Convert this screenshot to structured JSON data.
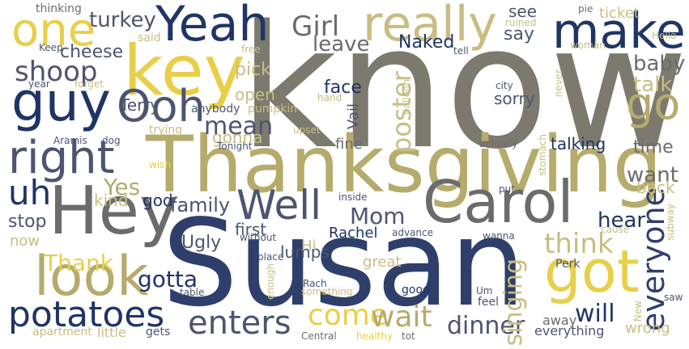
{
  "palette": {
    "background": "#ffffff",
    "navy": "#2f3f6b",
    "dark_navy": "#1f3566",
    "gray_olive": "#7c7a6f",
    "gray": "#6b6b6b",
    "tan": "#b5ab6c",
    "light_tan": "#c8bd82",
    "yellow": "#e8cf4a",
    "slate": "#4c5570"
  },
  "words": [
    {
      "text": "know",
      "color": "gray_olive",
      "vertical": false
    },
    {
      "text": "Susan",
      "color": "navy",
      "vertical": false
    },
    {
      "text": "Thanksgiving",
      "color": "tan",
      "vertical": false
    },
    {
      "text": "key",
      "color": "yellow",
      "vertical": false
    },
    {
      "text": "Hey",
      "color": "gray",
      "vertical": false
    },
    {
      "text": "Carol",
      "color": "gray",
      "vertical": false
    },
    {
      "text": "got",
      "color": "yellow",
      "vertical": false
    },
    {
      "text": "look",
      "color": "tan",
      "vertical": false
    },
    {
      "text": "guy",
      "color": "dark_navy",
      "vertical": false
    },
    {
      "text": "Yeah",
      "color": "dark_navy",
      "vertical": false
    },
    {
      "text": "really",
      "color": "light_tan",
      "vertical": false
    },
    {
      "text": "make",
      "color": "dark_navy",
      "vertical": false
    },
    {
      "text": "one",
      "color": "yellow",
      "vertical": false
    },
    {
      "text": "right",
      "color": "slate",
      "vertical": false
    },
    {
      "text": "Ooh",
      "color": "slate",
      "vertical": false
    },
    {
      "text": "go",
      "color": "tan",
      "vertical": false
    },
    {
      "text": "Well",
      "color": "slate",
      "vertical": false
    },
    {
      "text": "potatoes",
      "color": "dark_navy",
      "vertical": false
    },
    {
      "text": "everyone",
      "color": "navy",
      "vertical": true
    },
    {
      "text": "uh",
      "color": "dark_navy",
      "vertical": false
    },
    {
      "text": "enters",
      "color": "slate",
      "vertical": false
    },
    {
      "text": "come",
      "color": "yellow",
      "vertical": false
    },
    {
      "text": "wait",
      "color": "tan",
      "vertical": false
    },
    {
      "text": "Girl",
      "color": "gray",
      "vertical": false
    },
    {
      "text": "shoop",
      "color": "slate",
      "vertical": false
    },
    {
      "text": "think",
      "color": "light_tan",
      "vertical": false
    },
    {
      "text": "dinner",
      "color": "slate",
      "vertical": false
    },
    {
      "text": "mean",
      "color": "slate",
      "vertical": false
    },
    {
      "text": "Mom",
      "color": "slate",
      "vertical": false
    },
    {
      "text": "poster",
      "color": "light_tan",
      "vertical": true
    },
    {
      "text": "singing",
      "color": "light_tan",
      "vertical": true
    },
    {
      "text": "will",
      "color": "dark_navy",
      "vertical": false
    },
    {
      "text": "Thank",
      "color": "yellow",
      "vertical": false
    },
    {
      "text": "gotta",
      "color": "dark_navy",
      "vertical": false
    },
    {
      "text": "turkey",
      "color": "slate",
      "vertical": false
    },
    {
      "text": "leave",
      "color": "gray",
      "vertical": false
    },
    {
      "text": "Yes",
      "color": "tan",
      "vertical": false
    },
    {
      "text": "want",
      "color": "gray",
      "vertical": false
    },
    {
      "text": "baby",
      "color": "gray",
      "vertical": false
    },
    {
      "text": "talk",
      "color": "light_tan",
      "vertical": false
    },
    {
      "text": "hear",
      "color": "dark_navy",
      "vertical": false
    },
    {
      "text": "family",
      "color": "slate",
      "vertical": false
    },
    {
      "text": "face",
      "color": "dark_navy",
      "vertical": false
    },
    {
      "text": "Naked",
      "color": "dark_navy",
      "vertical": false
    },
    {
      "text": "cheese",
      "color": "slate",
      "vertical": false
    },
    {
      "text": "say",
      "color": "slate",
      "vertical": false
    },
    {
      "text": "pick",
      "color": "light_tan",
      "vertical": false
    },
    {
      "text": "open",
      "color": "light_tan",
      "vertical": false
    },
    {
      "text": "gonna",
      "color": "light_tan",
      "vertical": false
    },
    {
      "text": "time",
      "color": "gray",
      "vertical": false
    },
    {
      "text": "back",
      "color": "light_tan",
      "vertical": false
    },
    {
      "text": "see",
      "color": "slate",
      "vertical": false
    },
    {
      "text": "stop",
      "color": "slate",
      "vertical": false
    },
    {
      "text": "kind",
      "color": "light_tan",
      "vertical": false
    },
    {
      "text": "god",
      "color": "dark_navy",
      "vertical": false
    },
    {
      "text": "lumps",
      "color": "slate",
      "vertical": false
    },
    {
      "text": "Ugly",
      "color": "slate",
      "vertical": false
    },
    {
      "text": "first",
      "color": "slate",
      "vertical": false
    },
    {
      "text": "Rachel",
      "color": "dark_navy",
      "vertical": false
    },
    {
      "text": "sorry",
      "color": "slate",
      "vertical": false
    },
    {
      "text": "talking",
      "color": "dark_navy",
      "vertical": false
    },
    {
      "text": "ticket",
      "color": "light_tan",
      "vertical": false
    },
    {
      "text": "Terry",
      "color": "slate",
      "vertical": false
    },
    {
      "text": "Vail",
      "color": "slate",
      "vertical": true
    },
    {
      "text": "fine",
      "color": "gray",
      "vertical": false
    },
    {
      "text": "now",
      "color": "light_tan",
      "vertical": false
    },
    {
      "text": "Hi",
      "color": "light_tan",
      "vertical": false
    },
    {
      "text": "great",
      "color": "light_tan",
      "vertical": false
    },
    {
      "text": "everything",
      "color": "slate",
      "vertical": false
    },
    {
      "text": "away",
      "color": "gray",
      "vertical": false
    },
    {
      "text": "wrong",
      "color": "light_tan",
      "vertical": false
    },
    {
      "text": "thinking",
      "color": "gray",
      "vertical": false
    },
    {
      "text": "said",
      "color": "light_tan",
      "vertical": false
    },
    {
      "text": "Keep",
      "color": "slate",
      "vertical": false
    },
    {
      "text": "free",
      "color": "light_tan",
      "vertical": false
    },
    {
      "text": "ruined",
      "color": "light_tan",
      "vertical": false
    },
    {
      "text": "pie",
      "color": "gray",
      "vertical": false
    },
    {
      "text": "Hello",
      "color": "light_tan",
      "vertical": false
    },
    {
      "text": "woman",
      "color": "light_tan",
      "vertical": false
    },
    {
      "text": "tell",
      "color": "slate",
      "vertical": false
    },
    {
      "text": "year",
      "color": "slate",
      "vertical": false
    },
    {
      "text": "forget",
      "color": "light_tan",
      "vertical": false
    },
    {
      "text": "hand",
      "color": "light_tan",
      "vertical": false
    },
    {
      "text": "anybody",
      "color": "slate",
      "vertical": false
    },
    {
      "text": "pumpkin",
      "color": "light_tan",
      "vertical": false
    },
    {
      "text": "balloon",
      "color": "light_tan",
      "vertical": true
    },
    {
      "text": "city",
      "color": "slate",
      "vertical": false
    },
    {
      "text": "never",
      "color": "light_tan",
      "vertical": true
    },
    {
      "text": "trying",
      "color": "light_tan",
      "vertical": false
    },
    {
      "text": "upset",
      "color": "light_tan",
      "vertical": false
    },
    {
      "text": "Tonight",
      "color": "slate",
      "vertical": false
    },
    {
      "text": "Aramis",
      "color": "slate",
      "vertical": false
    },
    {
      "text": "dog",
      "color": "slate",
      "vertical": false
    },
    {
      "text": "wish",
      "color": "yellow",
      "vertical": false
    },
    {
      "text": "actually",
      "color": "gray",
      "vertical": false
    },
    {
      "text": "stomach",
      "color": "light_tan",
      "vertical": true
    },
    {
      "text": "inside",
      "color": "slate",
      "vertical": false
    },
    {
      "text": "put",
      "color": "slate",
      "vertical": false
    },
    {
      "text": "without",
      "color": "slate",
      "vertical": false
    },
    {
      "text": "advance",
      "color": "slate",
      "vertical": false
    },
    {
      "text": "wanna",
      "color": "slate",
      "vertical": false
    },
    {
      "text": "cause",
      "color": "light_tan",
      "vertical": false
    },
    {
      "text": "subway",
      "color": "light_tan",
      "vertical": true
    },
    {
      "text": "place",
      "color": "slate",
      "vertical": false
    },
    {
      "text": "enough",
      "color": "light_tan",
      "vertical": true
    },
    {
      "text": "Perk",
      "color": "slate",
      "vertical": false
    },
    {
      "text": "Rach",
      "color": "slate",
      "vertical": false
    },
    {
      "text": "something",
      "color": "light_tan",
      "vertical": false
    },
    {
      "text": "table",
      "color": "slate",
      "vertical": false
    },
    {
      "text": "good",
      "color": "dark_navy",
      "vertical": false
    },
    {
      "text": "Um",
      "color": "slate",
      "vertical": false
    },
    {
      "text": "feel",
      "color": "slate",
      "vertical": false
    },
    {
      "text": "saw",
      "color": "slate",
      "vertical": false
    },
    {
      "text": "New",
      "color": "light_tan",
      "vertical": true
    },
    {
      "text": "apartment",
      "color": "light_tan",
      "vertical": false
    },
    {
      "text": "little",
      "color": "light_tan",
      "vertical": false
    },
    {
      "text": "gets",
      "color": "slate",
      "vertical": false
    },
    {
      "text": "Central",
      "color": "gray",
      "vertical": false
    },
    {
      "text": "healthy",
      "color": "yellow",
      "vertical": false
    },
    {
      "text": "tot",
      "color": "gray",
      "vertical": false
    }
  ]
}
